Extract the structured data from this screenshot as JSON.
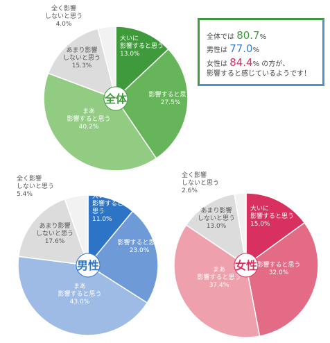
{
  "summary": {
    "total_prefix": "全体では",
    "total_value": "80.7",
    "total_suffix": "%",
    "male_prefix": "男性は",
    "male_value": "77.0",
    "male_suffix": "%",
    "female_prefix": "女性は",
    "female_value": "84.4",
    "female_suffix": "% の方が、",
    "conclusion": "影響すると感じているようです！"
  },
  "chart_data": [
    {
      "type": "pie",
      "center_label": "全体",
      "accent_color": "#3f9a3b",
      "slices": [
        {
          "label": [
            "大いに",
            "影響すると思う"
          ],
          "value": 13.0,
          "display": "13.0%",
          "color": "#3f9a3b"
        },
        {
          "label": [
            "影響すると思う"
          ],
          "value": 27.5,
          "display": "27.5%",
          "color": "#67b55a"
        },
        {
          "label": [
            "まあ",
            "影響すると思う"
          ],
          "value": 40.2,
          "display": "40.2%",
          "color": "#92cc83"
        },
        {
          "label": [
            "あまり影響",
            "しないと思う"
          ],
          "value": 15.3,
          "display": "15.3%",
          "color": "#dcdcdc"
        },
        {
          "label": [
            "全く影響",
            "しないと思う"
          ],
          "value": 4.0,
          "display": "4.0%",
          "color": "#f2f2f2"
        }
      ]
    },
    {
      "type": "pie",
      "center_label": "男性",
      "accent_color": "#2d74c6",
      "slices": [
        {
          "label": [
            "大いに",
            "影響すると",
            "思う"
          ],
          "value": 11.0,
          "display": "11.0%",
          "color": "#2d74c6"
        },
        {
          "label": [
            "影響すると思う"
          ],
          "value": 23.0,
          "display": "23.0%",
          "color": "#6e9bd8"
        },
        {
          "label": [
            "まあ",
            "影響すると思う"
          ],
          "value": 43.0,
          "display": "43.0%",
          "color": "#9dbbe5"
        },
        {
          "label": [
            "あまり影響",
            "しないと思う"
          ],
          "value": 17.6,
          "display": "17.6%",
          "color": "#dcdcdc"
        },
        {
          "label": [
            "全く影響",
            "しないと思う"
          ],
          "value": 5.4,
          "display": "5.4%",
          "color": "#f2f2f2"
        }
      ]
    },
    {
      "type": "pie",
      "center_label": "女性",
      "accent_color": "#d8305f",
      "slices": [
        {
          "label": [
            "大いに",
            "影響すると思う"
          ],
          "value": 15.0,
          "display": "15.0%",
          "color": "#d8305f"
        },
        {
          "label": [
            "影響すると思う"
          ],
          "value": 32.0,
          "display": "32.0%",
          "color": "#e36b85"
        },
        {
          "label": [
            "まあ",
            "影響すると思う"
          ],
          "value": 37.4,
          "display": "37.4%",
          "color": "#eea0ad"
        },
        {
          "label": [
            "あまり影響",
            "しないと思う"
          ],
          "value": 13.0,
          "display": "13.0%",
          "color": "#dcdcdc"
        },
        {
          "label": [
            "全く影響",
            "しないと思う"
          ],
          "value": 2.6,
          "display": "2.6%",
          "color": "#f2f2f2"
        }
      ]
    }
  ]
}
